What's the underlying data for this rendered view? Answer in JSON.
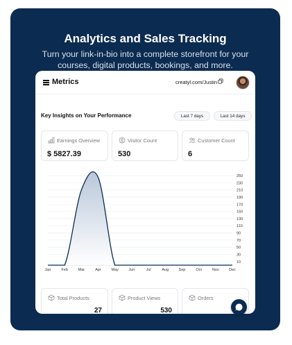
{
  "hero": {
    "title": "Analytics and Sales Tracking",
    "subtitle": "Turn your link-in-bio into a complete storefront for your courses, digital products, bookings, and more."
  },
  "topbar": {
    "title": "Metrics",
    "profile_link": "creatyl.com/Justin",
    "menu_icon": "hamburger-icon",
    "copy_icon": "copy-icon"
  },
  "insights": {
    "title": "Key Insights on Your Performance",
    "ranges": [
      "Last 7 days",
      "Last 14 days"
    ]
  },
  "stats": [
    {
      "label": "Earnings Overview",
      "value": "$ 5827.39",
      "icon": "bar-chart-icon"
    },
    {
      "label": "Visitor Count",
      "value": "530",
      "icon": "visitor-icon"
    },
    {
      "label": "Customer Count",
      "value": "6",
      "icon": "customer-icon"
    }
  ],
  "bottom_stats": [
    {
      "label": "Total Products",
      "value": "27",
      "icon": "product-icon"
    },
    {
      "label": "Product Views",
      "value": "530",
      "icon": "views-icon"
    },
    {
      "label": "Orders",
      "value": "",
      "icon": "orders-icon"
    }
  ],
  "colors": {
    "brand_navy": "#0c2b50",
    "chart_line": "#0c2b50",
    "chart_fill_top": "#b9c7da"
  },
  "chart_data": {
    "type": "area",
    "categories": [
      "Jan",
      "Feb",
      "Mar",
      "Apr",
      "May",
      "Jun",
      "Jul",
      "Aug",
      "Sep",
      "Oct",
      "Nov",
      "Dec"
    ],
    "values": [
      0,
      0,
      210,
      245,
      0,
      0,
      0,
      0,
      0,
      0,
      0,
      0
    ],
    "y_ticks": [
      10,
      30,
      50,
      70,
      90,
      110,
      130,
      150,
      170,
      190,
      210,
      230,
      250
    ],
    "ylim": [
      0,
      250
    ],
    "y_axis_side": "right",
    "grid": true,
    "smooth": true
  }
}
